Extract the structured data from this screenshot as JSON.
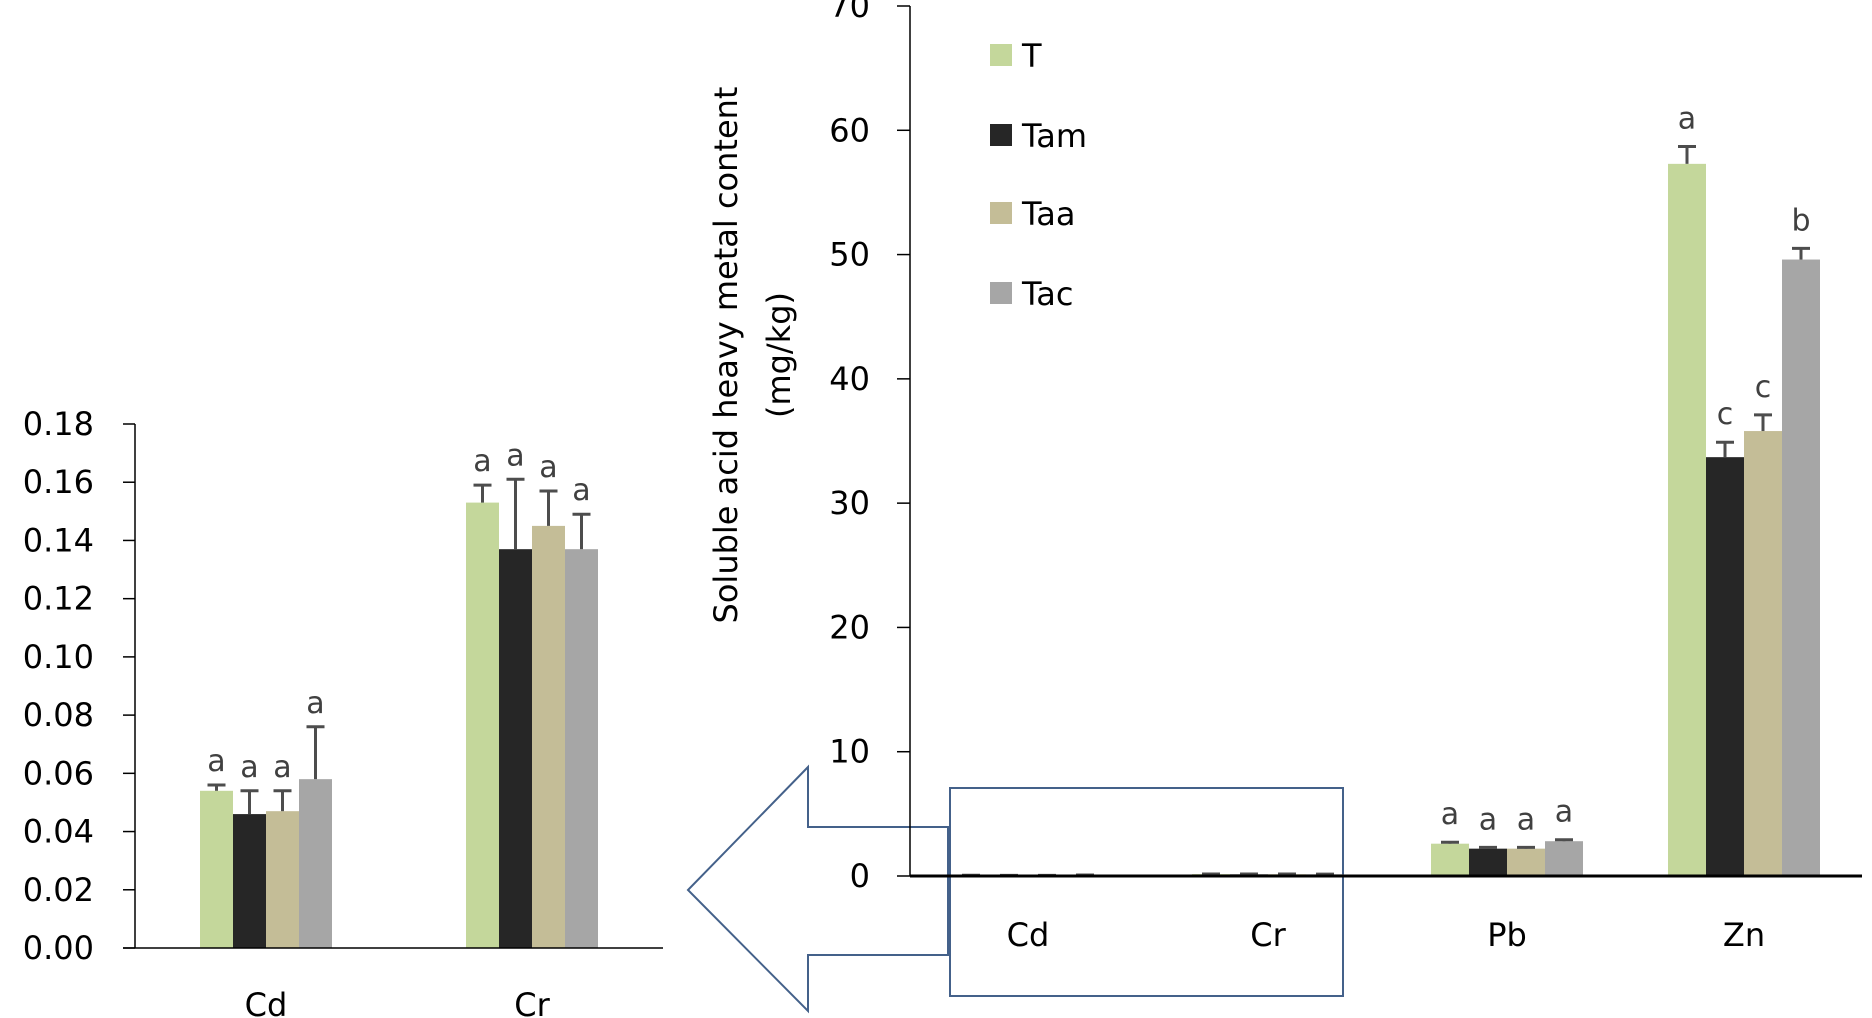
{
  "chart_data": [
    {
      "id": "main",
      "type": "bar",
      "title": "",
      "xlabel": "",
      "ylabel": "Soluble acid heavy metal content",
      "ylabel_unit": "(mg/kg)",
      "ylim": [
        0,
        70
      ],
      "yticks": [
        "0",
        "10",
        "20",
        "30",
        "40",
        "50",
        "60",
        "70"
      ],
      "ytick_values": [
        0,
        10,
        20,
        30,
        40,
        50,
        60,
        70
      ],
      "categories": [
        "Cd",
        "Cr",
        "Pb",
        "Zn"
      ],
      "legend_position": "top-left",
      "series": [
        {
          "name": "T",
          "color": "#c4d79b",
          "values": [
            0.054,
            0.153,
            2.6,
            57.3
          ],
          "errors": [
            0.002,
            0.006,
            0.12,
            1.4
          ],
          "labels": [
            "",
            "",
            "a",
            "a"
          ]
        },
        {
          "name": "Tam",
          "color": "#262626",
          "values": [
            0.046,
            0.137,
            2.2,
            33.7
          ],
          "errors": [
            0.008,
            0.024,
            0.1,
            1.2
          ],
          "labels": [
            "",
            "",
            "a",
            "c"
          ]
        },
        {
          "name": "Taa",
          "color": "#c4bd97",
          "values": [
            0.047,
            0.145,
            2.2,
            35.8
          ],
          "errors": [
            0.007,
            0.012,
            0.1,
            1.3
          ],
          "labels": [
            "",
            "",
            "a",
            "c"
          ]
        },
        {
          "name": "Tac",
          "color": "#a6a6a6",
          "values": [
            0.058,
            0.137,
            2.8,
            49.6
          ],
          "errors": [
            0.018,
            0.012,
            0.12,
            0.9
          ],
          "labels": [
            "",
            "",
            "a",
            "b"
          ]
        }
      ]
    },
    {
      "id": "inset",
      "type": "bar",
      "title": "",
      "xlabel": "",
      "ylabel": "",
      "ylim": [
        0,
        0.18
      ],
      "yticks": [
        "0.00",
        "0.02",
        "0.04",
        "0.06",
        "0.08",
        "0.10",
        "0.12",
        "0.14",
        "0.16",
        "0.18"
      ],
      "ytick_values": [
        0,
        0.02,
        0.04,
        0.06,
        0.08,
        0.1,
        0.12,
        0.14,
        0.16,
        0.18
      ],
      "categories": [
        "Cd",
        "Cr"
      ],
      "series": [
        {
          "name": "T",
          "color": "#c4d79b",
          "values": [
            0.054,
            0.153
          ],
          "errors": [
            0.002,
            0.006
          ],
          "labels": [
            "a",
            "a"
          ]
        },
        {
          "name": "Tam",
          "color": "#262626",
          "values": [
            0.046,
            0.137
          ],
          "errors": [
            0.008,
            0.024
          ],
          "labels": [
            "a",
            "a"
          ]
        },
        {
          "name": "Taa",
          "color": "#c4bd97",
          "values": [
            0.047,
            0.145
          ],
          "errors": [
            0.007,
            0.012
          ],
          "labels": [
            "a",
            "a"
          ]
        },
        {
          "name": "Tac",
          "color": "#a6a6a6",
          "values": [
            0.058,
            0.137
          ],
          "errors": [
            0.018,
            0.012
          ],
          "labels": [
            "a",
            "a"
          ]
        }
      ]
    }
  ],
  "annotation": {
    "zoom_box_color": "#44618a",
    "arrow_color": "#44618a",
    "description": "zoom-in arrow"
  },
  "colors": {
    "error_bar": "#4d4d4d",
    "axis": "#000000"
  }
}
